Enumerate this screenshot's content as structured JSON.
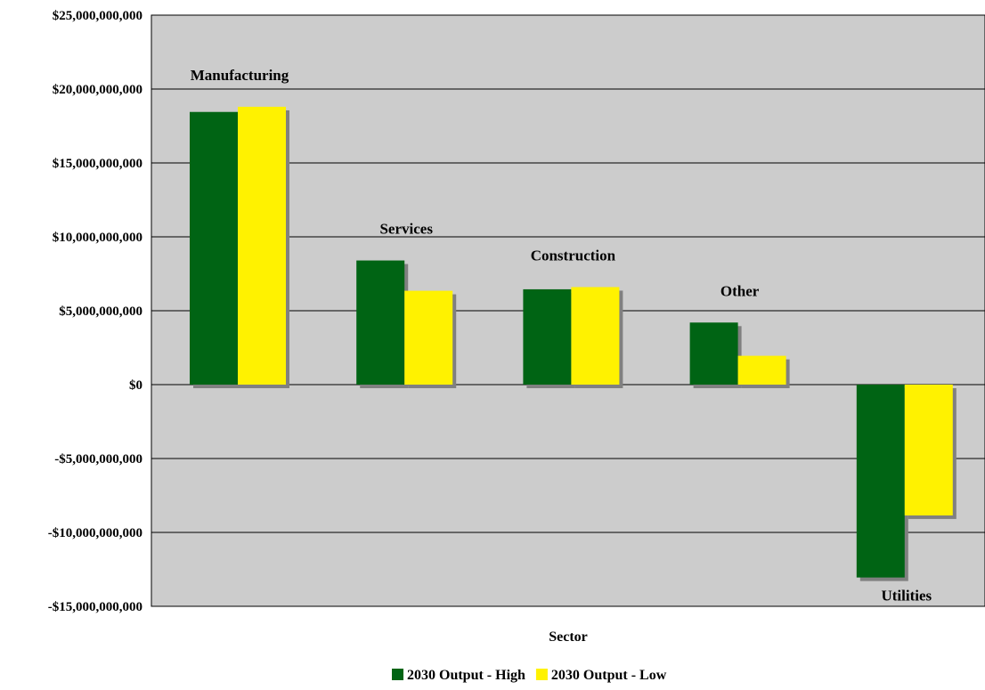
{
  "chart_data": {
    "type": "bar",
    "categories": [
      "Manufacturing",
      "Services",
      "Construction",
      "Other",
      "Utilities"
    ],
    "series": [
      {
        "name": "2030 Output - High",
        "values": [
          18450000000,
          8400000000,
          6450000000,
          4200000000,
          -13050000000
        ],
        "color": "#006414"
      },
      {
        "name": "2030 Output - Low",
        "values": [
          18800000000,
          6350000000,
          6600000000,
          1950000000,
          -8850000000
        ],
        "color": "#FFF200"
      }
    ],
    "xlabel": "Sector",
    "ylim": [
      -15000000000,
      25000000000
    ],
    "yticks": [
      -15000000000,
      -10000000000,
      -5000000000,
      0,
      5000000000,
      10000000000,
      15000000000,
      20000000000,
      25000000000
    ],
    "ytick_labels": [
      "-$15,000,000,000",
      "-$10,000,000,000",
      "-$5,000,000,000",
      "$0",
      "$5,000,000,000",
      "$10,000,000,000",
      "$15,000,000,000",
      "$20,000,000,000",
      "$25,000,000,000"
    ],
    "grid": true,
    "legend_position": "bottom",
    "plot_background": "#CCCCCC",
    "shadow_color": "#808080"
  }
}
